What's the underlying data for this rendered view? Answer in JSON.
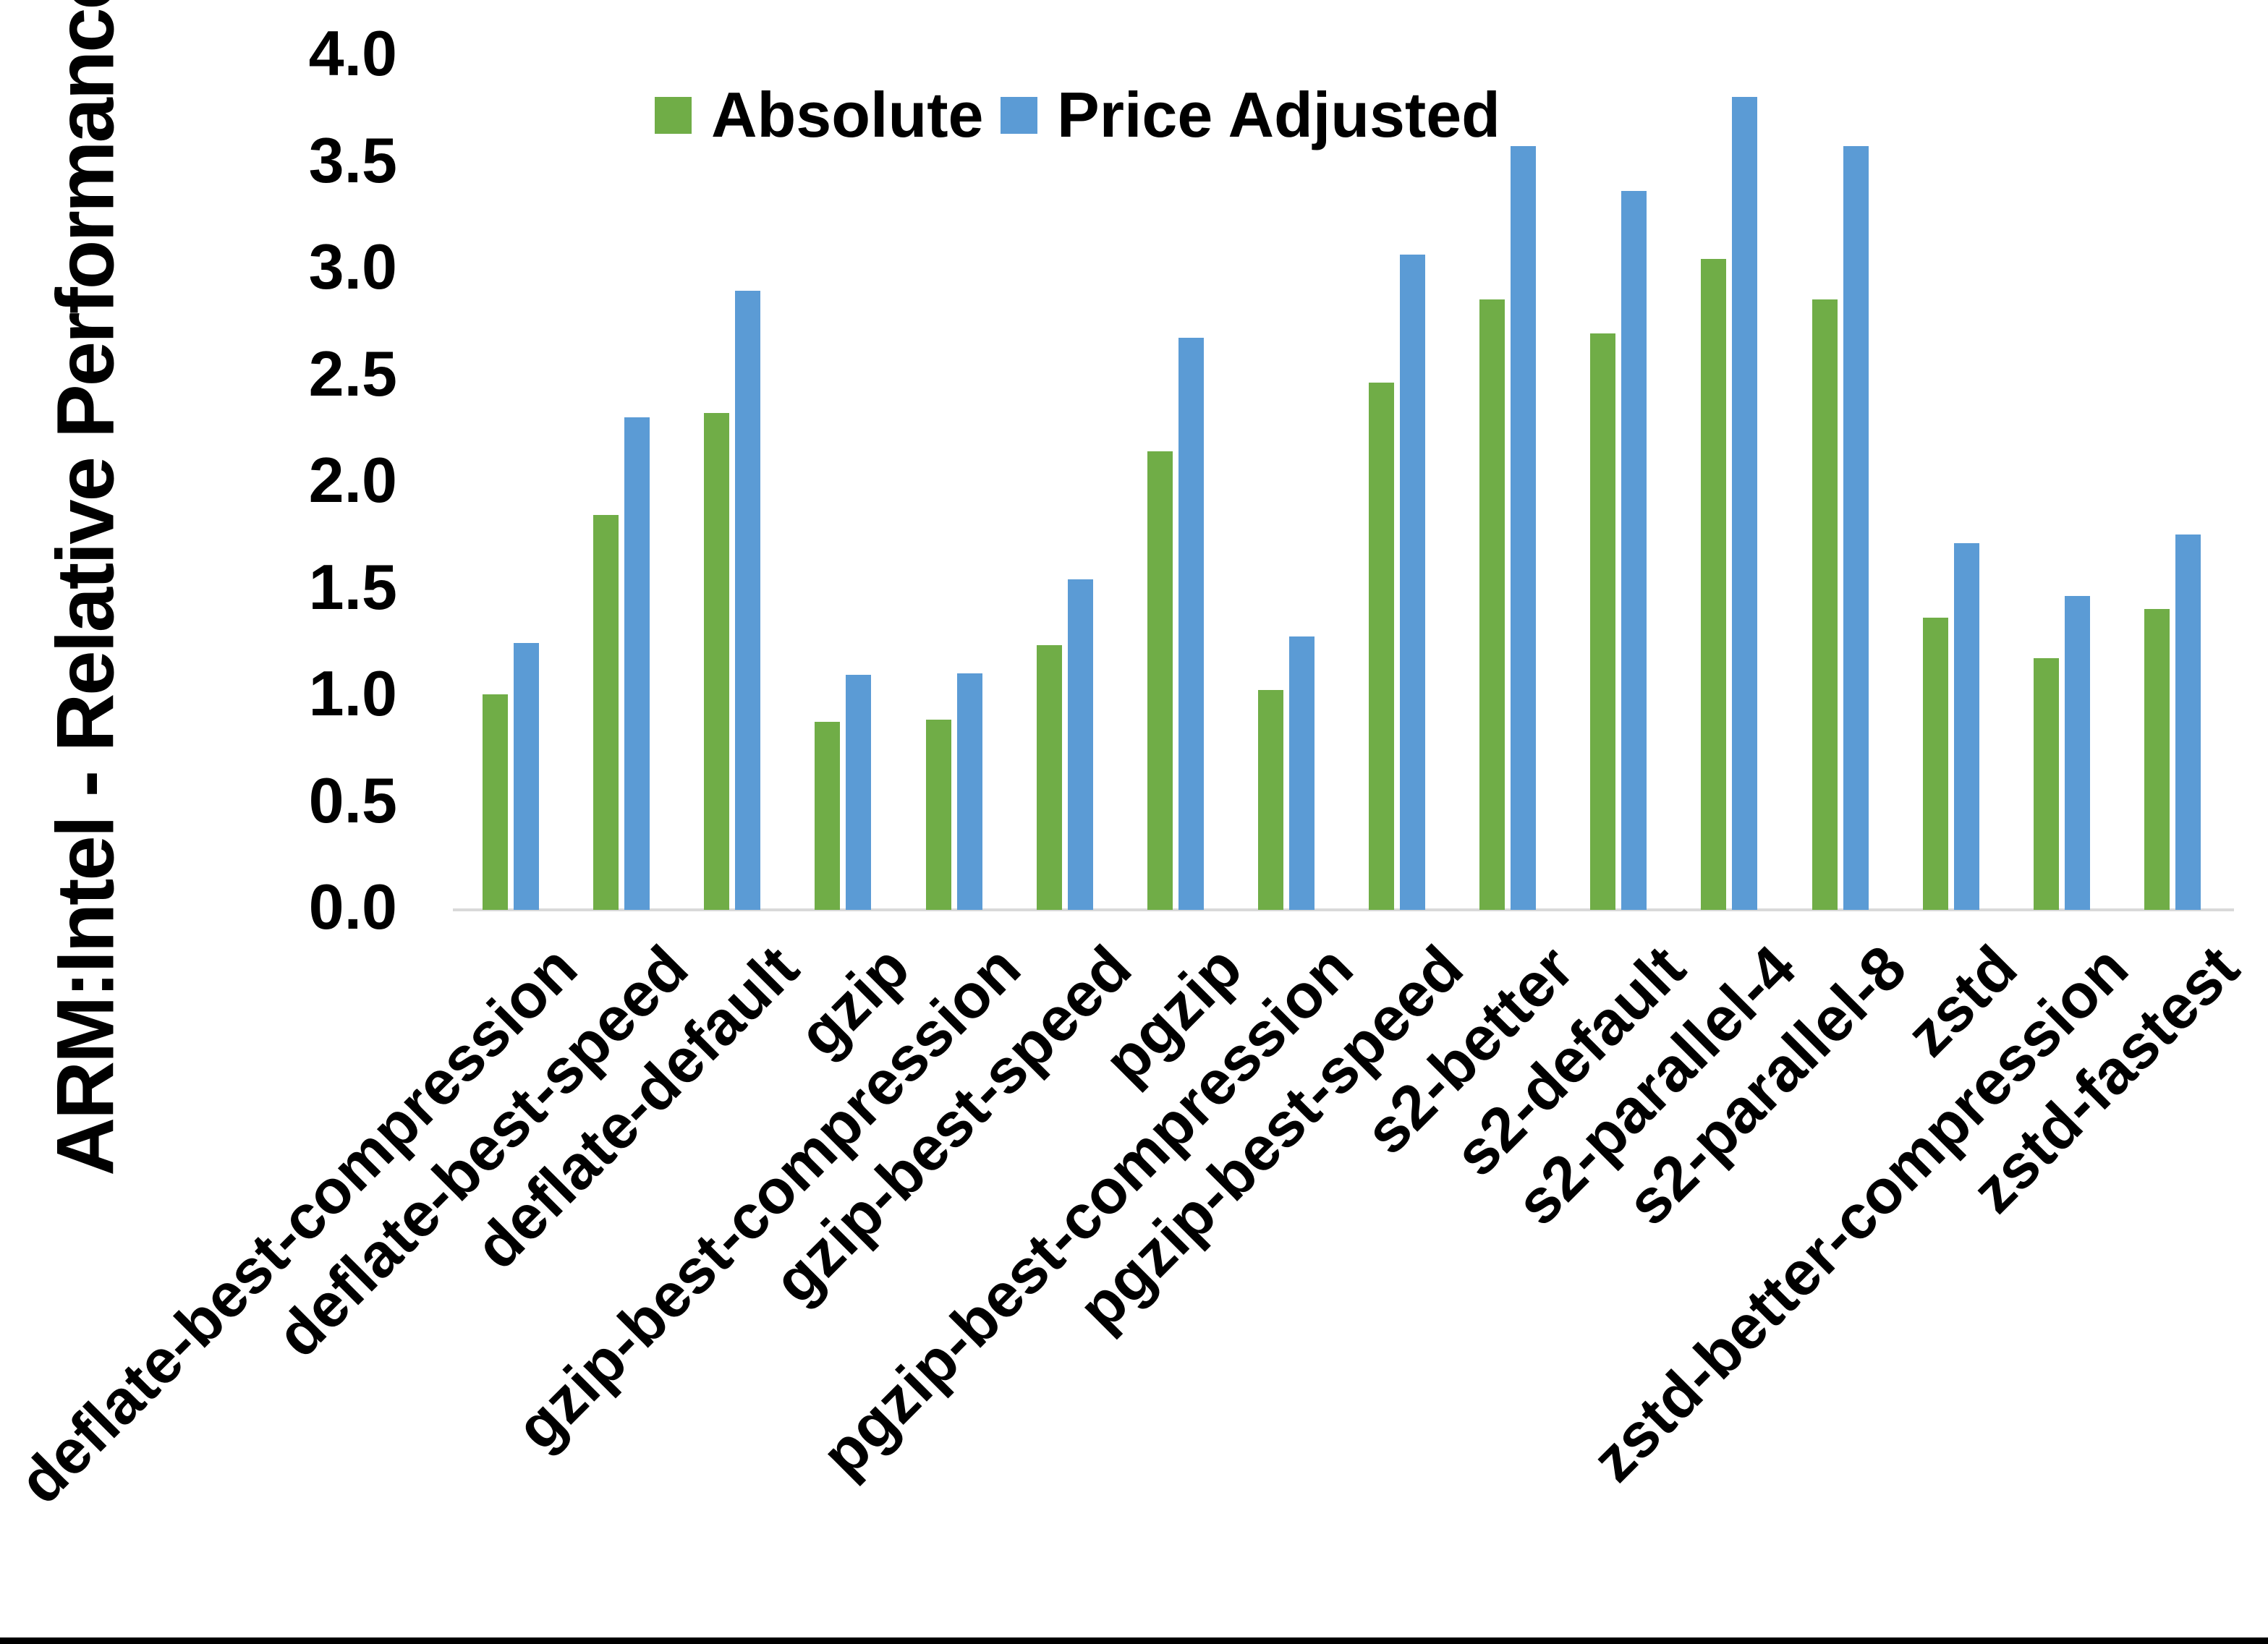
{
  "chart_data": {
    "type": "bar",
    "title": "",
    "ylabel": "ARM:Intel - Relative Performance",
    "xlabel": "",
    "ylim": [
      0.0,
      4.0
    ],
    "grid": false,
    "legend_position": "top-center",
    "categories": [
      "deflate-best-compression",
      "deflate-best-speed",
      "deflate-default",
      "gzip",
      "gzip-best-compression",
      "gzip-best-speed",
      "pgzip",
      "pgzip-best-compression",
      "pgzip-best-speed",
      "s2-better",
      "s2-default",
      "s2-parallel-4",
      "s2-parallel-8",
      "zstd",
      "zstd-better-compression",
      "zstd-fastest"
    ],
    "series": [
      {
        "name": "Absolute",
        "color": "#70AD47",
        "values": [
          1.01,
          1.85,
          2.33,
          0.88,
          0.89,
          1.24,
          2.15,
          1.03,
          2.47,
          2.86,
          2.7,
          3.05,
          2.86,
          1.37,
          1.18,
          1.41
        ]
      },
      {
        "name": "Price Adjusted",
        "color": "#5B9BD5",
        "values": [
          1.25,
          2.31,
          2.9,
          1.1,
          1.11,
          1.55,
          2.68,
          1.28,
          3.07,
          3.58,
          3.37,
          3.81,
          3.58,
          1.72,
          1.47,
          1.76
        ]
      }
    ],
    "y_axis": {
      "min": 0.0,
      "max": 4.0,
      "step": 0.5,
      "tick_labels": [
        "4.0",
        "3.5",
        "3.0",
        "2.5",
        "2.0",
        "1.5",
        "1.0",
        "0.5",
        "0.0"
      ]
    },
    "colors": {
      "axis_line": "#D9D9D9",
      "text": "#000000",
      "background": "#FFFFFF",
      "bottom_border": "#000000"
    }
  }
}
